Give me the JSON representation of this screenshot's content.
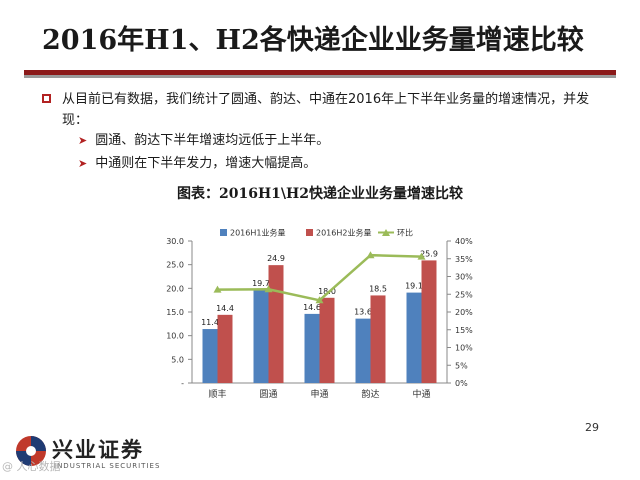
{
  "slide": {
    "title": "2016年H1、H2各快递企业业务量增速比较",
    "bullet": "从目前已有数据，我们统计了圆通、韵达、中通在2016年上下半年业务量的增速情况，并发现：",
    "sub_bullets": [
      "圆通、韵达下半年增速均远低于上半年。",
      "中通则在下半年发力，增速大幅提高。"
    ],
    "page_number": "29",
    "logo_text": "兴业证券",
    "logo_sub": "INDUSTRIAL SECURITIES",
    "watermark": "@ 人心数据",
    "colors": {
      "accent_dark": "#8b1a1a",
      "rule_grey": "#9a9a9a",
      "bullet_red": "#b22222"
    }
  },
  "chart_data": {
    "type": "bar",
    "title": "图表：2016H1\\H2快递企业业务量增速比较",
    "categories": [
      "顺丰",
      "圆通",
      "申通",
      "韵达",
      "中通"
    ],
    "series": [
      {
        "name": "2016H1业务量",
        "type": "bar",
        "axis": "left",
        "color": "#4f81bd",
        "values": [
          11.4,
          19.7,
          14.6,
          13.6,
          19.1
        ]
      },
      {
        "name": "2016H2业务量",
        "type": "bar",
        "axis": "left",
        "color": "#c0504d",
        "values": [
          14.4,
          24.9,
          18.0,
          18.5,
          25.9
        ]
      },
      {
        "name": "环比",
        "type": "line",
        "axis": "right",
        "color": "#9bbb59",
        "values": [
          0.263,
          0.264,
          0.233,
          0.36,
          0.356
        ]
      }
    ],
    "y_left": {
      "ylim": [
        0,
        30
      ],
      "ticks": [
        "-",
        "5.0",
        "10.0",
        "15.0",
        "20.0",
        "25.0",
        "30.0"
      ]
    },
    "y_right": {
      "ylim": [
        0,
        0.4
      ],
      "ticks": [
        "0%",
        "5%",
        "10%",
        "15%",
        "20%",
        "25%",
        "30%",
        "35%",
        "40%"
      ]
    },
    "legend": "top",
    "grid": false
  }
}
